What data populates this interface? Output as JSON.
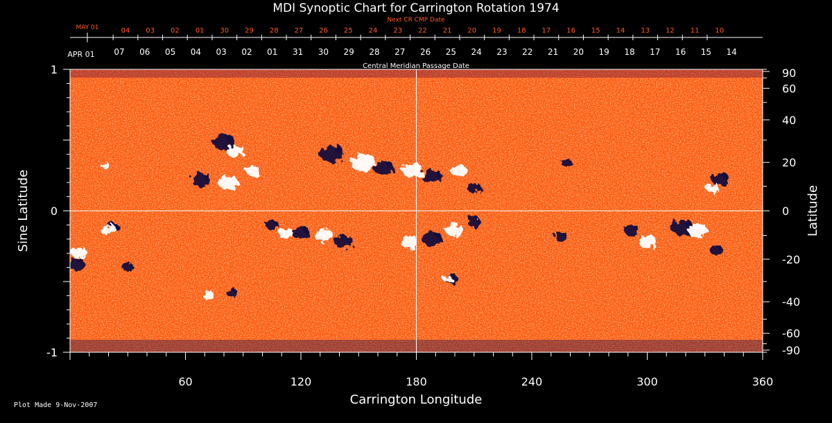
{
  "chart_data": {
    "type": "heatmap",
    "title": "MDI Synoptic Chart for Carrington Rotation 1974",
    "xlabel": "Carrington Longitude",
    "ylabel_left": "Sine Latitude",
    "ylabel_right": "Latitude",
    "xlim": [
      0,
      360
    ],
    "ylim": [
      -1,
      1
    ],
    "x_ticks": [
      "60",
      "120",
      "180",
      "240",
      "300",
      "360"
    ],
    "y_ticks_left": [
      "1",
      "0",
      "-1"
    ],
    "y_ticks_right": [
      "90",
      "60",
      "40",
      "20",
      "0",
      "-20",
      "-40",
      "-60",
      "-90"
    ],
    "center_meridian_longitude": 180,
    "colors": {
      "background": "#ff5a10",
      "positive_polarity": "#ffffff",
      "negative_polarity": "#18103c",
      "axis": "#ffffff",
      "date_labels_top": "#ff5a1e"
    },
    "next_cr_axis": {
      "label": "Next CR CMP Date",
      "start": "MAY 01",
      "dates": [
        "04",
        "03",
        "02",
        "01",
        "30",
        "29",
        "28",
        "27",
        "26",
        "25",
        "24",
        "23",
        "22",
        "21",
        "20",
        "19",
        "18",
        "17",
        "16",
        "15",
        "14",
        "13",
        "12",
        "11",
        "10"
      ]
    },
    "cmp_axis": {
      "label": "Central Meridian Passage Date",
      "start": "APR 01",
      "dates": [
        "07",
        "06",
        "05",
        "04",
        "03",
        "02",
        "01",
        "31",
        "30",
        "29",
        "28",
        "27",
        "26",
        "25",
        "24",
        "23",
        "22",
        "21",
        "20",
        "19",
        "18",
        "17",
        "16",
        "15",
        "14"
      ]
    },
    "active_regions": [
      {
        "lon": 80,
        "sinlat": 0.48,
        "polarity": "negative",
        "strength": 1.0
      },
      {
        "lon": 86,
        "sinlat": 0.42,
        "polarity": "positive",
        "strength": 0.8
      },
      {
        "lon": 68,
        "sinlat": 0.22,
        "polarity": "negative",
        "strength": 0.9
      },
      {
        "lon": 82,
        "sinlat": 0.2,
        "polarity": "positive",
        "strength": 0.9
      },
      {
        "lon": 95,
        "sinlat": 0.28,
        "polarity": "positive",
        "strength": 0.6
      },
      {
        "lon": 136,
        "sinlat": 0.4,
        "polarity": "negative",
        "strength": 1.1
      },
      {
        "lon": 152,
        "sinlat": 0.34,
        "polarity": "positive",
        "strength": 1.1
      },
      {
        "lon": 163,
        "sinlat": 0.3,
        "polarity": "negative",
        "strength": 0.9
      },
      {
        "lon": 178,
        "sinlat": 0.28,
        "polarity": "positive",
        "strength": 0.9
      },
      {
        "lon": 188,
        "sinlat": 0.24,
        "polarity": "negative",
        "strength": 0.9
      },
      {
        "lon": 202,
        "sinlat": 0.28,
        "polarity": "positive",
        "strength": 0.7
      },
      {
        "lon": 210,
        "sinlat": 0.16,
        "polarity": "negative",
        "strength": 0.6
      },
      {
        "lon": 258,
        "sinlat": 0.34,
        "polarity": "negative",
        "strength": 0.5
      },
      {
        "lon": 338,
        "sinlat": 0.22,
        "polarity": "negative",
        "strength": 0.8
      },
      {
        "lon": 334,
        "sinlat": 0.16,
        "polarity": "positive",
        "strength": 0.6
      },
      {
        "lon": 18,
        "sinlat": 0.32,
        "polarity": "positive",
        "strength": 0.4
      },
      {
        "lon": 22,
        "sinlat": -0.12,
        "polarity": "negative",
        "strength": 0.6
      },
      {
        "lon": 20,
        "sinlat": -0.14,
        "polarity": "positive",
        "strength": 0.7
      },
      {
        "lon": 3,
        "sinlat": -0.38,
        "polarity": "negative",
        "strength": 0.8
      },
      {
        "lon": 5,
        "sinlat": -0.3,
        "polarity": "positive",
        "strength": 0.7
      },
      {
        "lon": 30,
        "sinlat": -0.4,
        "polarity": "negative",
        "strength": 0.5
      },
      {
        "lon": 105,
        "sinlat": -0.1,
        "polarity": "negative",
        "strength": 0.6
      },
      {
        "lon": 112,
        "sinlat": -0.16,
        "polarity": "positive",
        "strength": 0.7
      },
      {
        "lon": 120,
        "sinlat": -0.16,
        "polarity": "negative",
        "strength": 0.8
      },
      {
        "lon": 132,
        "sinlat": -0.18,
        "polarity": "positive",
        "strength": 0.8
      },
      {
        "lon": 142,
        "sinlat": -0.22,
        "polarity": "negative",
        "strength": 0.8
      },
      {
        "lon": 176,
        "sinlat": -0.22,
        "polarity": "positive",
        "strength": 0.8
      },
      {
        "lon": 188,
        "sinlat": -0.2,
        "polarity": "negative",
        "strength": 0.9
      },
      {
        "lon": 200,
        "sinlat": -0.14,
        "polarity": "positive",
        "strength": 0.8
      },
      {
        "lon": 210,
        "sinlat": -0.08,
        "polarity": "negative",
        "strength": 0.6
      },
      {
        "lon": 198,
        "sinlat": -0.48,
        "polarity": "negative",
        "strength": 0.6
      },
      {
        "lon": 196,
        "sinlat": -0.48,
        "polarity": "positive",
        "strength": 0.4
      },
      {
        "lon": 255,
        "sinlat": -0.18,
        "polarity": "negative",
        "strength": 0.6
      },
      {
        "lon": 292,
        "sinlat": -0.14,
        "polarity": "negative",
        "strength": 0.7
      },
      {
        "lon": 300,
        "sinlat": -0.22,
        "polarity": "positive",
        "strength": 0.8
      },
      {
        "lon": 318,
        "sinlat": -0.12,
        "polarity": "negative",
        "strength": 1.0
      },
      {
        "lon": 326,
        "sinlat": -0.14,
        "polarity": "positive",
        "strength": 0.9
      },
      {
        "lon": 336,
        "sinlat": -0.28,
        "polarity": "negative",
        "strength": 0.6
      },
      {
        "lon": 72,
        "sinlat": -0.6,
        "polarity": "positive",
        "strength": 0.5
      },
      {
        "lon": 84,
        "sinlat": -0.58,
        "polarity": "negative",
        "strength": 0.5
      }
    ]
  },
  "footer": {
    "plot_made": "Plot Made  9-Nov-2007"
  }
}
